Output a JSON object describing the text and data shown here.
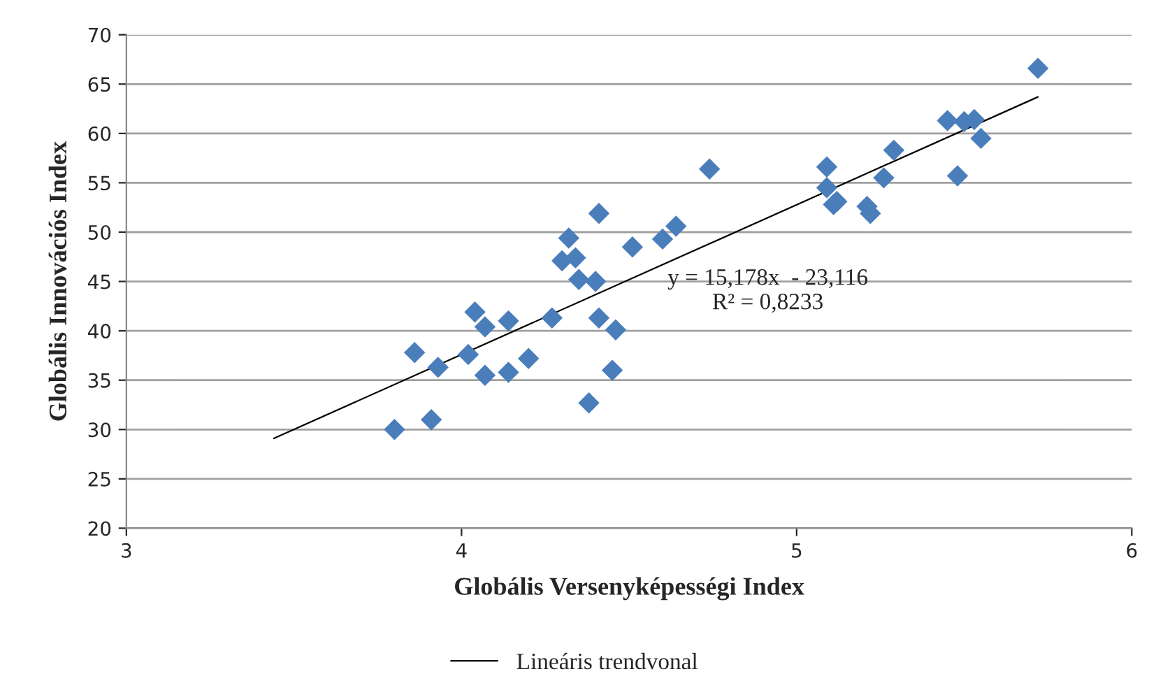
{
  "chart_data": {
    "type": "scatter",
    "xlabel": "Globális Versenyképességi Index",
    "ylabel": "Globális Innovációs Index",
    "series": [
      {
        "color": "#4a7ebb",
        "marker": "diamond",
        "x": [
          3.8,
          3.86,
          3.93,
          3.91,
          4.02,
          4.04,
          4.07,
          4.07,
          4.14,
          4.14,
          4.2,
          4.27,
          4.3,
          4.32,
          4.34,
          4.35,
          4.38,
          4.4,
          4.41,
          4.41,
          4.46,
          4.45,
          4.51,
          4.6,
          4.64,
          4.74,
          5.09,
          5.09,
          5.11,
          5.12,
          5.21,
          5.22,
          5.26,
          5.29,
          5.45,
          5.48,
          5.5,
          5.53,
          5.55,
          5.72
        ],
        "values": [
          30.0,
          37.8,
          36.3,
          31.0,
          37.6,
          41.9,
          40.4,
          35.5,
          41.0,
          35.8,
          37.2,
          41.3,
          47.1,
          49.4,
          47.4,
          45.2,
          32.7,
          45.0,
          51.9,
          41.3,
          40.1,
          36.0,
          48.5,
          49.3,
          50.6,
          56.4,
          56.6,
          54.5,
          52.8,
          53.1,
          52.6,
          51.9,
          55.5,
          58.3,
          61.3,
          55.7,
          61.2,
          61.4,
          59.5,
          66.6
        ]
      },
      {
        "type": "line",
        "name": "Lineáris trendvonal",
        "color": "#000000",
        "line_style": "solid",
        "x": [
          3.44,
          5.72
        ],
        "values": [
          29.1,
          63.7
        ]
      }
    ],
    "annotations": [
      "y = 15,178x  - 23,116\nR² = 0,8233"
    ],
    "xlim": [
      3,
      6
    ],
    "xticks": [
      3,
      4,
      5,
      6
    ],
    "ylim": [
      20,
      70
    ],
    "yticks": [
      20,
      25,
      30,
      35,
      40,
      45,
      50,
      55,
      60,
      65,
      70
    ],
    "grid": "y",
    "legend": "bottom"
  }
}
